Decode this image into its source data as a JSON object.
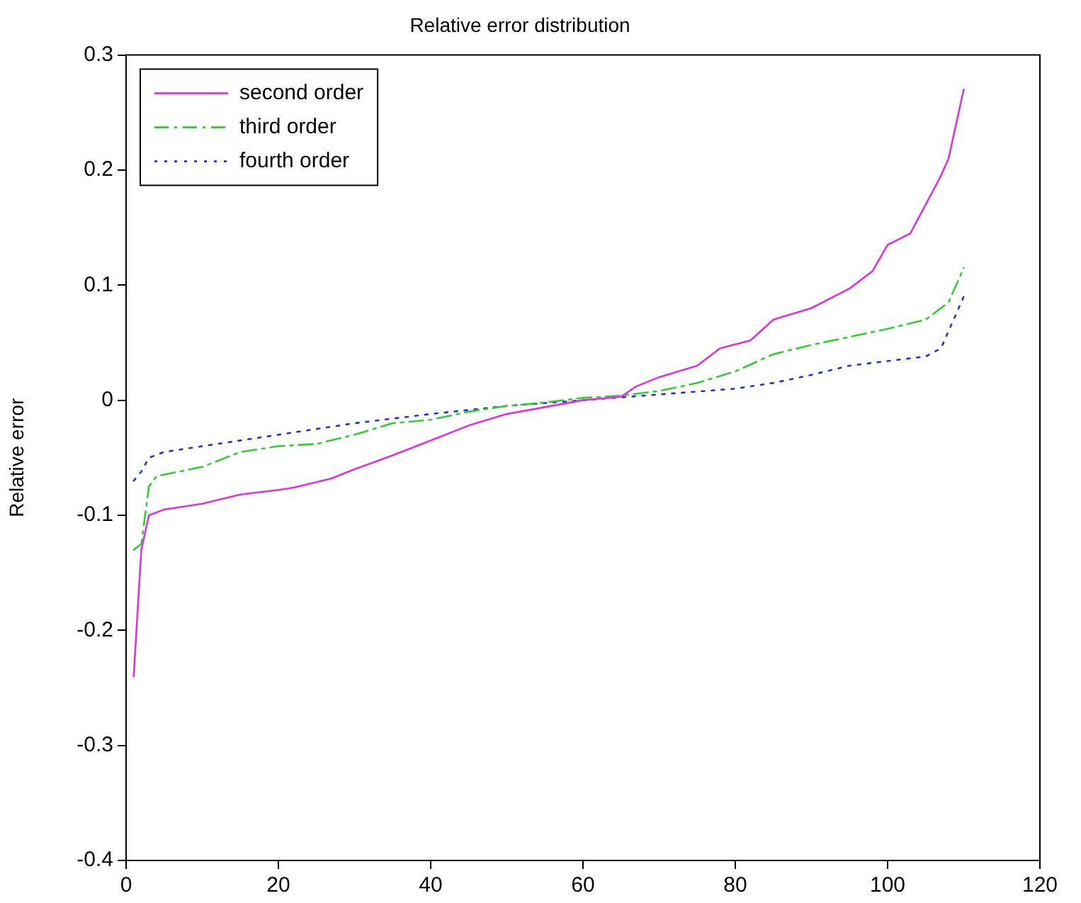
{
  "chart_data": {
    "type": "line",
    "title": "Relative error distribution",
    "ylabel": "Relative error",
    "xlim": [
      0,
      120
    ],
    "xticks": [
      0,
      20,
      40,
      60,
      80,
      100,
      120
    ],
    "ylim": [
      -0.4,
      0.3
    ],
    "yticks": [
      -0.4,
      -0.3,
      -0.2,
      -0.1,
      0,
      0.1,
      0.2,
      0.3
    ],
    "grid": false,
    "legend": "top left",
    "marker": "none",
    "series": [
      {
        "name": "second order",
        "color": "#dd33dd",
        "line_style": "solid",
        "x": [
          1,
          2,
          3,
          5,
          10,
          15,
          20,
          22,
          27,
          30,
          35,
          40,
          45,
          50,
          55,
          60,
          65,
          67,
          70,
          75,
          78,
          82,
          85,
          90,
          95,
          98,
          100,
          103,
          105,
          107,
          108,
          110
        ],
        "values": [
          -0.24,
          -0.13,
          -0.1,
          -0.095,
          -0.09,
          -0.082,
          -0.078,
          -0.076,
          -0.068,
          -0.06,
          -0.048,
          -0.035,
          -0.022,
          -0.012,
          -0.006,
          0,
          0.003,
          0.012,
          0.02,
          0.03,
          0.045,
          0.052,
          0.07,
          0.08,
          0.097,
          0.112,
          0.135,
          0.145,
          0.17,
          0.195,
          0.21,
          0.27
        ]
      },
      {
        "name": "third order",
        "color": "#33cc33",
        "line_style": "dashed",
        "x": [
          1,
          2,
          3,
          4,
          10,
          15,
          20,
          25,
          30,
          35,
          40,
          45,
          50,
          55,
          60,
          65,
          70,
          75,
          80,
          85,
          90,
          95,
          100,
          105,
          108,
          110
        ],
        "values": [
          -0.13,
          -0.125,
          -0.075,
          -0.066,
          -0.058,
          -0.045,
          -0.04,
          -0.038,
          -0.03,
          -0.02,
          -0.017,
          -0.01,
          -0.005,
          -0.002,
          0.002,
          0.004,
          0.008,
          0.015,
          0.025,
          0.04,
          0.048,
          0.055,
          0.062,
          0.07,
          0.085,
          0.115
        ]
      },
      {
        "name": "fourth order",
        "color": "#2233cc",
        "line_style": "dotted",
        "x": [
          1,
          2,
          3,
          5,
          10,
          20,
          30,
          40,
          50,
          60,
          70,
          80,
          85,
          90,
          95,
          100,
          105,
          107,
          108,
          110
        ],
        "values": [
          -0.07,
          -0.062,
          -0.05,
          -0.045,
          -0.04,
          -0.03,
          -0.02,
          -0.012,
          -0.005,
          0,
          0.005,
          0.01,
          0.015,
          0.022,
          0.03,
          0.034,
          0.038,
          0.045,
          0.06,
          0.09
        ]
      }
    ]
  }
}
